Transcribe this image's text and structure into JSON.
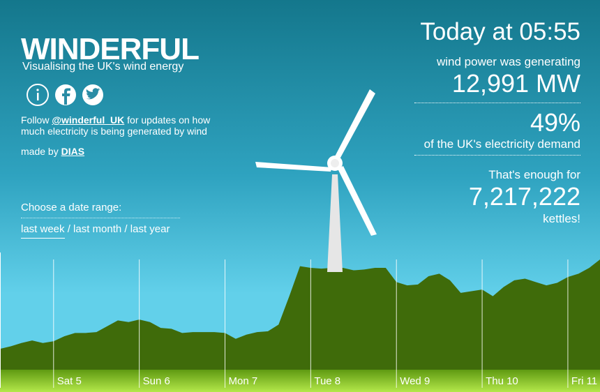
{
  "header": {
    "title": "WINDERFUL",
    "subtitle": "Visualising the UK's wind energy"
  },
  "follow": {
    "prefix": "Follow",
    "handle": "@winderful_UK",
    "suffix": "for updates on how much electricity is being generated by wind"
  },
  "credit": {
    "prefix": "made by",
    "name": "DIAS"
  },
  "date_range": {
    "label": "Choose a date range:",
    "options": [
      "last week",
      "last month",
      "last year"
    ],
    "separator": "/"
  },
  "stats": {
    "heading": "Today at 05:55",
    "power_label": "wind power was generating",
    "power_value": "12,991 MW",
    "share_value": "49%",
    "share_label": "of the UK's electricity demand",
    "kettles_label": "That's enough for",
    "kettles_value": "7,217,222",
    "kettles_unit": "kettles!"
  },
  "chart_data": {
    "type": "area",
    "color": "#3f6b0a",
    "categories": [
      null,
      null,
      null,
      null,
      null,
      "Sat 5",
      null,
      null,
      null,
      null,
      null,
      null,
      null,
      "Sun 6",
      null,
      null,
      null,
      null,
      null,
      null,
      null,
      "Mon 7",
      null,
      null,
      null,
      null,
      null,
      null,
      null,
      "Tue 8",
      null,
      null,
      null,
      null,
      null,
      null,
      null,
      "Wed 9",
      null,
      null,
      null,
      null,
      null,
      null,
      null,
      "Thu 10",
      null,
      null,
      null,
      null,
      null,
      null,
      null,
      "Fri 11",
      null,
      null,
      null
    ],
    "values": [
      2500,
      2800,
      3200,
      3500,
      3200,
      3400,
      4000,
      4400,
      4400,
      4500,
      5200,
      5900,
      5700,
      6000,
      5700,
      5000,
      4900,
      4400,
      4500,
      4500,
      4500,
      4400,
      3700,
      4200,
      4500,
      4600,
      5400,
      8800,
      12400,
      12200,
      12100,
      12200,
      12200,
      11900,
      12000,
      12200,
      12200,
      10500,
      10100,
      10200,
      11200,
      11500,
      10700,
      9200,
      9400,
      9600,
      8800,
      9900,
      10700,
      10900,
      10500,
      10100,
      10400,
      11100,
      11500,
      12200,
      13200
    ]
  }
}
